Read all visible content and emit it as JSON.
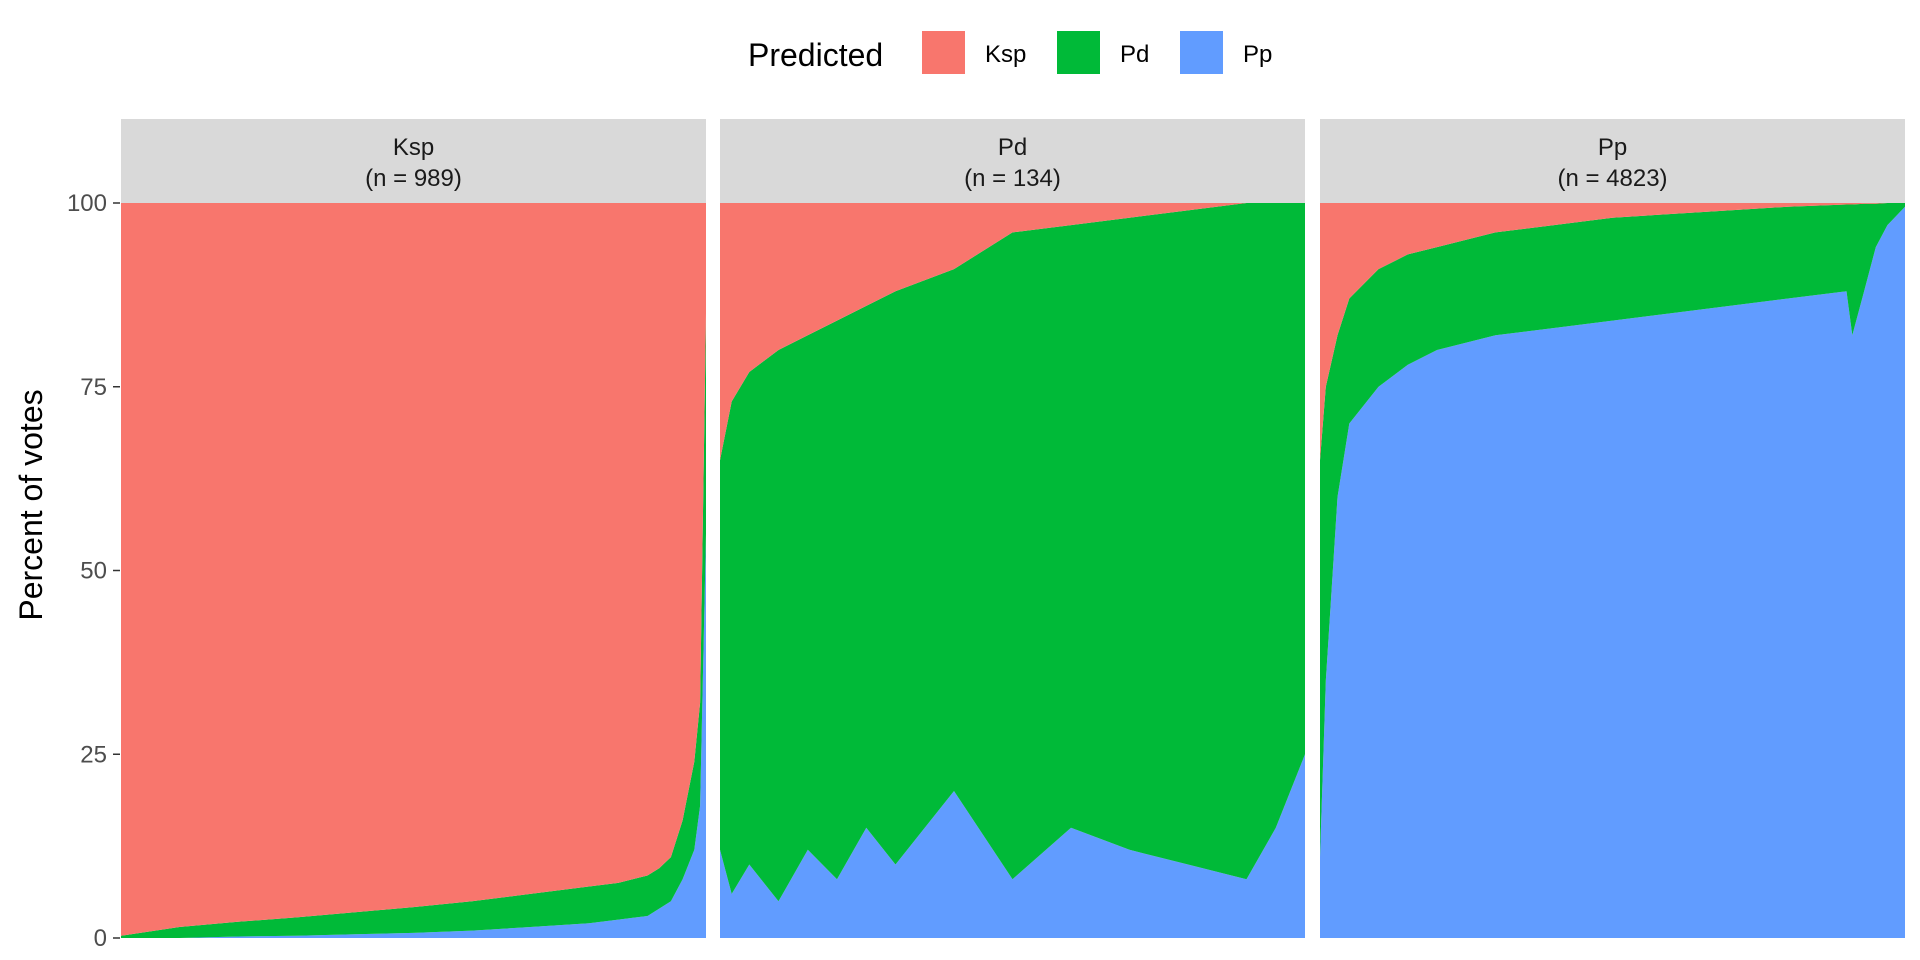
{
  "chart_data": {
    "type": "area",
    "subtype": "stacked-100-percent-faceted",
    "ylabel": "Percent of votes",
    "xlabel": "",
    "ylim": [
      0,
      100
    ],
    "yticks": [
      0,
      25,
      50,
      75,
      100
    ],
    "legend": {
      "title": "Predicted",
      "position": "top",
      "items": [
        {
          "label": "Ksp",
          "color": "#F8766D"
        },
        {
          "label": "Pd",
          "color": "#00BA38"
        },
        {
          "label": "Pp",
          "color": "#619CFF"
        }
      ]
    },
    "stack_order_bottom_to_top": [
      "Pp",
      "Pd",
      "Ksp"
    ],
    "facets": [
      {
        "title": "Ksp",
        "subtitle": "(n = 989)",
        "x_fraction": [
          0,
          0.1,
          0.2,
          0.3,
          0.4,
          0.5,
          0.6,
          0.7,
          0.8,
          0.85,
          0.9,
          0.92,
          0.94,
          0.96,
          0.98,
          0.99,
          1.0
        ],
        "series": [
          {
            "name": "Pp",
            "values": [
              0,
              0,
              0.2,
              0.3,
              0.5,
              0.7,
              1.0,
              1.5,
              2.0,
              2.5,
              3.0,
              4.0,
              5.0,
              8.0,
              12.0,
              18.0,
              55.0
            ]
          },
          {
            "name": "Pd",
            "values": [
              0.3,
              1.5,
              2.0,
              2.5,
              3.0,
              3.5,
              4.0,
              4.5,
              5.0,
              5.0,
              5.5,
              5.5,
              6.0,
              8.0,
              12.0,
              14.0,
              30.0
            ]
          },
          {
            "name": "Ksp",
            "values": [
              99.7,
              98.5,
              97.8,
              97.2,
              96.5,
              95.8,
              95.0,
              94.0,
              93.0,
              92.5,
              91.5,
              90.5,
              89.0,
              84.0,
              76.0,
              68.0,
              15.0
            ]
          }
        ]
      },
      {
        "title": "Pd",
        "subtitle": "(n = 134)",
        "x_fraction": [
          0,
          0.02,
          0.05,
          0.1,
          0.15,
          0.2,
          0.25,
          0.3,
          0.4,
          0.5,
          0.6,
          0.7,
          0.8,
          0.9,
          0.95,
          1.0
        ],
        "series": [
          {
            "name": "Pp",
            "values": [
              12,
              6,
              10,
              5,
              12,
              8,
              15,
              10,
              20,
              8,
              15,
              12,
              10,
              8,
              15,
              25
            ]
          },
          {
            "name": "Pd",
            "values": [
              53,
              67,
              67,
              75,
              70,
              76,
              71,
              78,
              71,
              88,
              82,
              86,
              89,
              92,
              85,
              75
            ]
          },
          {
            "name": "Ksp",
            "values": [
              35,
              27,
              23,
              20,
              18,
              16,
              14,
              12,
              9,
              4,
              3,
              2,
              1,
              0,
              0,
              0
            ]
          }
        ]
      },
      {
        "title": "Pp",
        "subtitle": "(n = 4823)",
        "x_fraction": [
          0,
          0.01,
          0.03,
          0.05,
          0.1,
          0.15,
          0.2,
          0.3,
          0.4,
          0.5,
          0.6,
          0.7,
          0.8,
          0.9,
          0.91,
          0.93,
          0.95,
          0.97,
          1.0
        ],
        "series": [
          {
            "name": "Pp",
            "values": [
              11,
              35,
              60,
              70,
              75,
              78,
              80,
              82,
              83,
              84,
              85,
              86,
              87,
              88,
              82,
              88,
              94,
              97,
              99.5
            ]
          },
          {
            "name": "Pd",
            "values": [
              54,
              40,
              22,
              17,
              16,
              15,
              14,
              14,
              14,
              14,
              13.5,
              13,
              12.5,
              11.8,
              17.8,
              11.9,
              5.9,
              3,
              0.5
            ]
          },
          {
            "name": "Ksp",
            "values": [
              35,
              25,
              18,
              13,
              9,
              7,
              6,
              4,
              3,
              2,
              1.5,
              1,
              0.5,
              0.2,
              0.2,
              0.1,
              0.1,
              0,
              0
            ]
          }
        ]
      }
    ]
  }
}
